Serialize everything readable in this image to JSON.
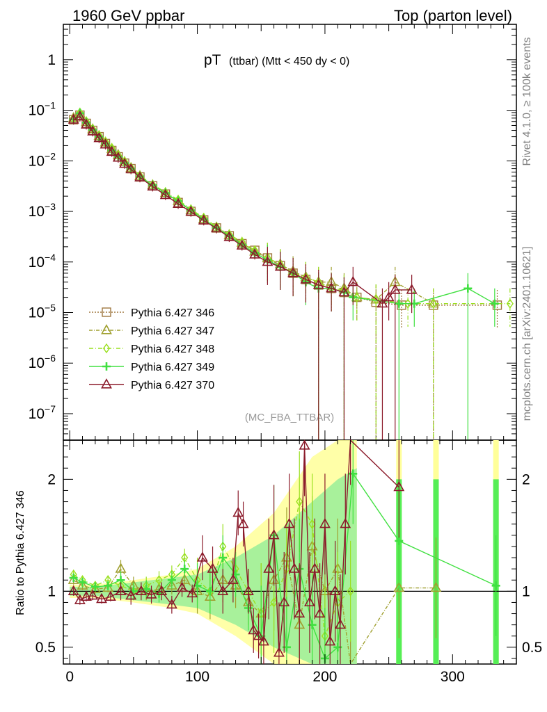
{
  "header": {
    "left": "1960 GeV ppbar",
    "right": "Top (parton level)"
  },
  "side_labels": {
    "rivet": "Rivet 4.1.0, ≥ 100k events",
    "site": "mcplots.cern.ch [arXiv:2401.10621]"
  },
  "chart_data": [
    {
      "type": "line",
      "title_main": "pT",
      "title_sub": "(ttbar) (Mtt < 450 dy < 0)",
      "analysis_tag": "(MC_FBA_TTBAR)",
      "yscale": "log",
      "xlim": [
        -5,
        350
      ],
      "ylim": [
        3e-08,
        5
      ],
      "y_tick_labels": [
        {
          "v": 1,
          "text": "1"
        },
        {
          "v": 0.1,
          "base": "10",
          "exp": "−1"
        },
        {
          "v": 0.01,
          "base": "10",
          "exp": "−2"
        },
        {
          "v": 0.001,
          "base": "10",
          "exp": "−3"
        },
        {
          "v": 0.0001,
          "base": "10",
          "exp": "−4"
        },
        {
          "v": 1e-05,
          "base": "10",
          "exp": "−5"
        },
        {
          "v": 1e-06,
          "base": "10",
          "exp": "−6"
        },
        {
          "v": 1e-07,
          "base": "10",
          "exp": "−7"
        }
      ],
      "series": [
        {
          "name": "Pythia 6.427 346",
          "color": "#a07840",
          "marker": "square",
          "dash": "2,2",
          "x": [
            3,
            8,
            13,
            18,
            23,
            28,
            33,
            38,
            43,
            48,
            55,
            65,
            75,
            85,
            95,
            105,
            115,
            125,
            135,
            145,
            155,
            165,
            175,
            185,
            195,
            205,
            215,
            225,
            240,
            260,
            285,
            335
          ],
          "y": [
            0.065,
            0.08,
            0.055,
            0.04,
            0.03,
            0.022,
            0.016,
            0.012,
            0.009,
            0.007,
            0.0048,
            0.0032,
            0.0022,
            0.0015,
            0.001,
            0.00068,
            0.00047,
            0.00033,
            0.00023,
            0.00017,
            0.00012,
            8.5e-05,
            6e-05,
            4.5e-05,
            3.5e-05,
            3e-05,
            2.5e-05,
            2e-05,
            1.6e-05,
            1.4e-05,
            1.4e-05,
            1.4e-05
          ]
        },
        {
          "name": "Pythia 6.427 347",
          "color": "#a0a030",
          "marker": "triangle",
          "dash": "5,2,1,2",
          "x": [
            3,
            8,
            13,
            18,
            23,
            28,
            33,
            38,
            43,
            48,
            55,
            65,
            75,
            85,
            95,
            105,
            115,
            125,
            135,
            145,
            155,
            165,
            175,
            185,
            195,
            205,
            215,
            225,
            240,
            255,
            285
          ],
          "y": [
            0.07,
            0.085,
            0.058,
            0.042,
            0.031,
            0.023,
            0.017,
            0.013,
            0.0095,
            0.0072,
            0.005,
            0.0033,
            0.0023,
            0.0016,
            0.00105,
            0.0007,
            0.00048,
            0.00034,
            0.00024,
            0.00016,
            0.00012,
            9e-05,
            6.5e-05,
            5e-05,
            4e-05,
            4e-05,
            3e-05,
            2e-05,
            1.8e-05,
            4e-05,
            1.5e-05
          ]
        },
        {
          "name": "Pythia 6.427 348",
          "color": "#9ae020",
          "marker": "diamond",
          "dash": "6,3,1,3",
          "x": [
            3,
            8,
            13,
            18,
            23,
            28,
            33,
            38,
            43,
            48,
            55,
            65,
            75,
            85,
            95,
            105,
            115,
            125,
            135,
            145,
            155,
            165,
            175,
            185,
            195,
            205,
            215,
            225,
            240,
            265,
            285,
            345
          ],
          "y": [
            0.068,
            0.09,
            0.06,
            0.043,
            0.032,
            0.024,
            0.018,
            0.013,
            0.0097,
            0.0074,
            0.0051,
            0.0034,
            0.0024,
            0.0017,
            0.0011,
            0.00075,
            0.0005,
            0.00035,
            0.00025,
            0.00017,
            0.00012,
            9e-05,
            6e-05,
            5e-05,
            4e-05,
            3e-05,
            2.8e-05,
            2e-05,
            1.8e-05,
            1.5e-05,
            1.5e-05,
            1.5e-05
          ]
        },
        {
          "name": "Pythia 6.427 349",
          "color": "#40e040",
          "marker": "plus",
          "dash": "",
          "x": [
            3,
            8,
            13,
            18,
            23,
            28,
            33,
            38,
            43,
            48,
            55,
            65,
            75,
            85,
            95,
            105,
            115,
            125,
            135,
            145,
            155,
            165,
            175,
            185,
            195,
            205,
            215,
            222,
            258,
            270,
            312,
            333
          ],
          "y": [
            0.066,
            0.087,
            0.057,
            0.041,
            0.03,
            0.022,
            0.016,
            0.012,
            0.009,
            0.007,
            0.0049,
            0.0033,
            0.0023,
            0.0016,
            0.00105,
            0.0007,
            0.00047,
            0.00033,
            0.00022,
            0.00015,
            0.00011,
            8e-05,
            6e-05,
            4e-05,
            3e-05,
            3e-05,
            2.5e-05,
            2e-05,
            1.5e-05,
            1.5e-05,
            3e-05,
            1.5e-05
          ]
        },
        {
          "name": "Pythia 6.427 370",
          "color": "#8b1a2a",
          "marker": "triangle",
          "dash": "",
          "x": [
            3,
            8,
            13,
            18,
            23,
            28,
            33,
            38,
            43,
            48,
            55,
            65,
            75,
            85,
            95,
            105,
            115,
            125,
            135,
            145,
            155,
            165,
            175,
            185,
            195,
            205,
            215,
            222,
            245,
            250,
            255,
            268
          ],
          "y": [
            0.065,
            0.075,
            0.052,
            0.038,
            0.028,
            0.021,
            0.015,
            0.0115,
            0.0087,
            0.0068,
            0.0047,
            0.0031,
            0.0021,
            0.0014,
            0.00098,
            0.00066,
            0.00046,
            0.00031,
            0.00021,
            0.00014,
            0.0001,
            8e-05,
            6e-05,
            4.5e-05,
            3.5e-05,
            3e-05,
            2.5e-05,
            4e-05,
            1.5e-05,
            2e-05,
            2.8e-05,
            2.8e-05
          ]
        }
      ]
    },
    {
      "type": "line",
      "ylabel": "Ratio to Pythia 6.427 346",
      "xlim": [
        -5,
        350
      ],
      "ylim": [
        0.35,
        2.35
      ],
      "x_ticks": [
        0,
        100,
        200,
        300
      ],
      "y_ticks": [
        0.5,
        1,
        2
      ],
      "reference": 1,
      "bands": [
        {
          "color": "#ffff99",
          "points": [
            [
              0,
              0.06
            ],
            [
              20,
              0.06
            ],
            [
              50,
              0.1
            ],
            [
              80,
              0.15
            ],
            [
              100,
              0.2
            ],
            [
              130,
              0.4
            ],
            [
              160,
              0.7
            ],
            [
              190,
              1.2
            ],
            [
              210,
              1.6
            ],
            [
              225,
              1.9
            ]
          ]
        },
        {
          "color": "#99ee99",
          "points": [
            [
              0,
              0.04
            ],
            [
              20,
              0.04
            ],
            [
              50,
              0.08
            ],
            [
              80,
              0.12
            ],
            [
              100,
              0.15
            ],
            [
              130,
              0.3
            ],
            [
              160,
              0.5
            ],
            [
              190,
              0.8
            ],
            [
              210,
              1.0
            ],
            [
              225,
              1.1
            ]
          ]
        }
      ],
      "spikes": [
        {
          "x": 258,
          "color": "#ffff99",
          "lo": 0.35,
          "hi": 2.35
        },
        {
          "x": 287,
          "color": "#ffff99",
          "lo": 0.35,
          "hi": 2.35
        },
        {
          "x": 334,
          "color": "#ffff99",
          "lo": 0.35,
          "hi": 2.35
        },
        {
          "x": 258,
          "color": "#55ee55",
          "lo": 0.35,
          "hi": 2.0
        },
        {
          "x": 287,
          "color": "#55ee55",
          "lo": 0.35,
          "hi": 2.0
        },
        {
          "x": 334,
          "color": "#55ee55",
          "lo": 0.35,
          "hi": 2.0
        }
      ],
      "series": [
        {
          "name": "Pythia 6.427 347",
          "color": "#a0a030",
          "marker": "triangle",
          "dash": "5,2,1,2",
          "x": [
            3,
            10,
            20,
            30,
            40,
            50,
            60,
            70,
            80,
            90,
            100,
            110,
            120,
            130,
            140,
            150,
            160,
            170,
            180,
            190,
            200,
            210,
            220,
            258,
            287
          ],
          "y": [
            1.1,
            1.05,
            1.02,
            1.03,
            1.2,
            1.05,
            1.0,
            1.02,
            1.05,
            1.1,
            1.0,
            0.95,
            1.1,
            1.05,
            0.9,
            0.8,
            1.1,
            1.3,
            0.7,
            1.4,
            1.0,
            1.2,
            0.3,
            1.03,
            1.03
          ]
        },
        {
          "name": "Pythia 6.427 348",
          "color": "#9ae020",
          "marker": "diamond",
          "dash": "6,3,1,3",
          "x": [
            3,
            10,
            20,
            30,
            40,
            50,
            60,
            70,
            80,
            90,
            100,
            110,
            120,
            130,
            140,
            150,
            160,
            170,
            180,
            190,
            200,
            210,
            220
          ],
          "y": [
            1.15,
            1.1,
            1.05,
            1.1,
            1.05,
            1.0,
            1.05,
            1.1,
            1.15,
            1.3,
            1.1,
            1.0,
            1.4,
            1.2,
            1.0,
            0.8,
            0.9,
            1.2,
            1.8,
            1.6,
            0.6,
            0.9,
            1.0
          ]
        },
        {
          "name": "Pythia 6.427 349",
          "color": "#40e040",
          "marker": "plus",
          "dash": "",
          "x": [
            3,
            10,
            20,
            30,
            40,
            50,
            60,
            70,
            80,
            90,
            100,
            110,
            120,
            130,
            140,
            150,
            160,
            170,
            180,
            190,
            200,
            210,
            222,
            258,
            334
          ],
          "y": [
            1.12,
            1.08,
            1.04,
            1.05,
            1.1,
            1.0,
            1.02,
            0.98,
            1.1,
            1.2,
            1.05,
            1.0,
            1.3,
            1.15,
            0.85,
            0.6,
            1.5,
            0.5,
            1.2,
            0.7,
            0.4,
            0.5,
            2.05,
            1.45,
            1.05
          ]
        },
        {
          "name": "Pythia 6.427 370",
          "color": "#8b1a2a",
          "marker": "triangle",
          "dash": "",
          "x": [
            3,
            8,
            13,
            18,
            25,
            32,
            40,
            48,
            56,
            64,
            72,
            80,
            88,
            96,
            104,
            112,
            120,
            128,
            132,
            136,
            140,
            144,
            148,
            152,
            156,
            160,
            164,
            168,
            172,
            176,
            180,
            184,
            188,
            192,
            196,
            200,
            204,
            208,
            212,
            216,
            220,
            258
          ],
          "y": [
            1.0,
            0.92,
            0.95,
            0.96,
            0.93,
            0.95,
            1.0,
            0.96,
            1.0,
            0.97,
            1.0,
            0.88,
            1.03,
            0.98,
            1.3,
            1.2,
            1.0,
            1.1,
            1.7,
            1.6,
            1.0,
            0.65,
            0.6,
            0.55,
            1.2,
            1.5,
            0.45,
            0.9,
            1.6,
            1.2,
            0.8,
            2.3,
            0.9,
            1.2,
            0.8,
            1.6,
            0.55,
            1.0,
            0.7,
            1.6,
            2.4,
            1.93
          ]
        }
      ]
    }
  ]
}
